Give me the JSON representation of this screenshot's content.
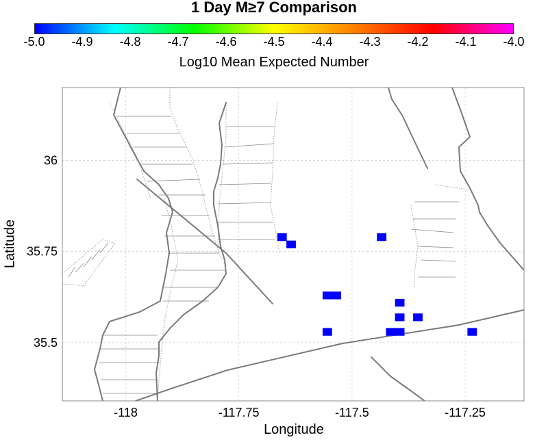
{
  "chart_data": {
    "type": "heatmap",
    "title": "1 Day M≥7 Comparison",
    "colorbar": {
      "label": "Log10 Mean Expected Number",
      "min": -5.0,
      "max": -4.0,
      "ticks": [
        "-5.0",
        "-4.9",
        "-4.8",
        "-4.7",
        "-4.6",
        "-4.5",
        "-4.4",
        "-4.3",
        "-4.2",
        "-4.1",
        "-4.0"
      ],
      "colors": [
        "#0000ff",
        "#00ffff",
        "#00ff00",
        "#ffff00",
        "#ff8000",
        "#ff0000",
        "#ff00ff"
      ]
    },
    "xlabel": "Longitude",
    "ylabel": "Latitude",
    "xlim": [
      -118.14,
      -117.12
    ],
    "ylim": [
      35.34,
      36.2
    ],
    "xticks": [
      -118,
      -117.75,
      -117.5,
      -117.25
    ],
    "xtick_labels": [
      "-118",
      "-117.75",
      "-117.5",
      "-117.25"
    ],
    "yticks": [
      35.5,
      35.75,
      36
    ],
    "ytick_labels": [
      "35.5",
      "35.75",
      "36"
    ],
    "cells": [
      {
        "lon": -117.655,
        "lat": 35.79,
        "value": -5.0
      },
      {
        "lon": -117.635,
        "lat": 35.77,
        "value": -5.0
      },
      {
        "lon": -117.435,
        "lat": 35.79,
        "value": -5.0
      },
      {
        "lon": -117.555,
        "lat": 35.63,
        "value": -5.0
      },
      {
        "lon": -117.535,
        "lat": 35.63,
        "value": -5.0
      },
      {
        "lon": -117.395,
        "lat": 35.61,
        "value": -5.0
      },
      {
        "lon": -117.395,
        "lat": 35.57,
        "value": -5.0
      },
      {
        "lon": -117.355,
        "lat": 35.57,
        "value": -5.0
      },
      {
        "lon": -117.555,
        "lat": 35.53,
        "value": -5.0
      },
      {
        "lon": -117.415,
        "lat": 35.53,
        "value": -5.0
      },
      {
        "lon": -117.395,
        "lat": 35.53,
        "value": -5.0
      },
      {
        "lon": -117.235,
        "lat": 35.53,
        "value": -5.0
      }
    ]
  }
}
